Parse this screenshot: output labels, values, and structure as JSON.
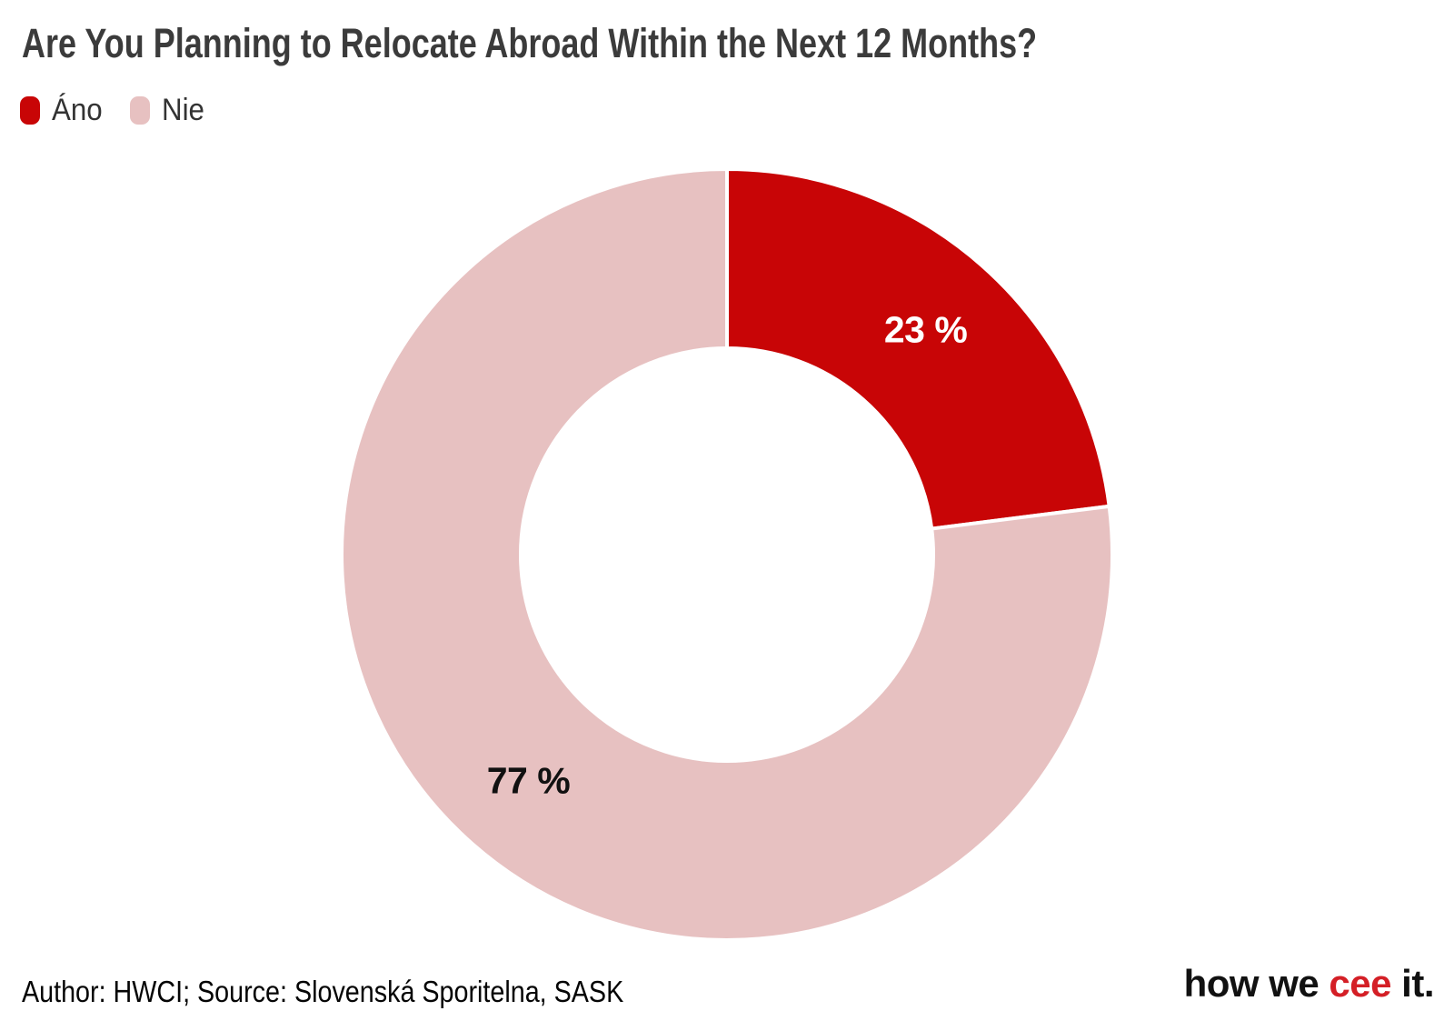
{
  "header": {
    "title": "Are You Planning to Relocate Abroad Within the Next 12 Months?"
  },
  "legend": {
    "items": [
      {
        "label": "Áno",
        "color": "#c80506"
      },
      {
        "label": "Nie",
        "color": "#e7c1c1"
      }
    ]
  },
  "chart_data": {
    "type": "pie",
    "subtype": "donut",
    "title": "Are You Planning to Relocate Abroad Within the Next 12 Months?",
    "categories": [
      "Áno",
      "Nie"
    ],
    "values": [
      23,
      77
    ],
    "unit": "%",
    "labels": [
      "23 %",
      "77 %"
    ],
    "colors": [
      "#c80506",
      "#e7c1c1"
    ],
    "label_colors": [
      "#ffffff",
      "#111111"
    ],
    "separator_color": "#ffffff",
    "start_angle_deg": 0,
    "direction": "clockwise",
    "inner_radius_ratio": 0.536,
    "legend_position": "top-left"
  },
  "footer": {
    "attribution": "Author: HWCI; Source: Slovenská Sporitelna, SASK",
    "logo": {
      "part1": "how we ",
      "part2": "cee",
      "part3": " it.",
      "accent_color": "#d41f26",
      "text_color": "#111111"
    }
  }
}
